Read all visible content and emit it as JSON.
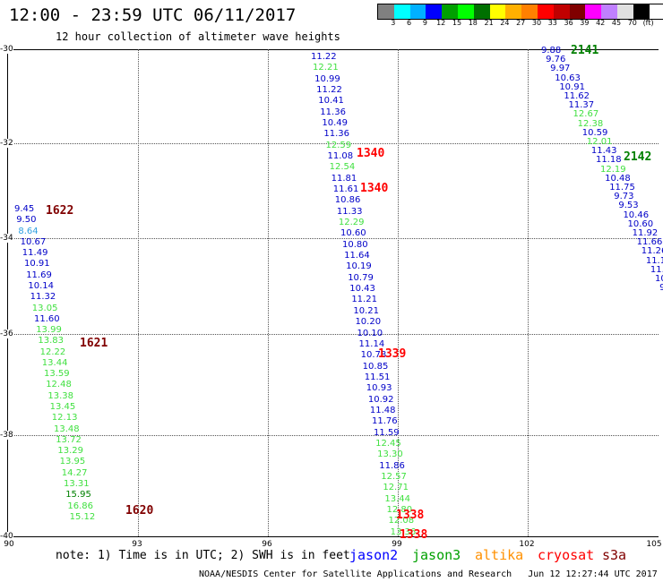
{
  "title": "12:00 - 23:59 UTC 06/11/2017",
  "subtitle": "12 hour collection of altimeter wave heights",
  "scale": {
    "labels": [
      "3",
      "6",
      "9",
      "12",
      "15",
      "18",
      "21",
      "24",
      "27",
      "30",
      "33",
      "36",
      "39",
      "42",
      "45",
      "70",
      "(ft)"
    ],
    "colors": [
      "#808080",
      "#00ffff",
      "#00b0ff",
      "#0000ff",
      "#00a000",
      "#00ff00",
      "#007000",
      "#ffff00",
      "#ffb000",
      "#ff8000",
      "#ff0000",
      "#c00000",
      "#800000",
      "#ff00ff",
      "#c080ff",
      "#e0e0e0",
      "#000000",
      "#ffffff"
    ]
  },
  "axes": {
    "y_labels": [
      "-30",
      "-32",
      "-34",
      "-36",
      "-38",
      "-40"
    ],
    "x_labels": [
      "90",
      "93",
      "96",
      "99",
      "102",
      "105"
    ]
  },
  "colors": {
    "blue": "#0000c8",
    "lightgreen": "#40e040",
    "darkgreen": "#008000",
    "cyan": "#30a0e0",
    "darkred": "#800000",
    "red": "#ff0000"
  },
  "tracks": [
    {
      "name": "jason2-track-a",
      "values": [
        {
          "t": "9.45",
          "c": "blue"
        },
        {
          "t": "9.50",
          "c": "blue"
        },
        {
          "t": "8.64",
          "c": "cyan"
        },
        {
          "t": "10.67",
          "c": "blue"
        },
        {
          "t": "11.49",
          "c": "blue"
        },
        {
          "t": "10.91",
          "c": "blue"
        },
        {
          "t": "11.69",
          "c": "blue"
        },
        {
          "t": "10.14",
          "c": "blue"
        },
        {
          "t": "11.32",
          "c": "blue"
        },
        {
          "t": "13.05",
          "c": "lightgreen"
        },
        {
          "t": "11.60",
          "c": "blue"
        },
        {
          "t": "13.99",
          "c": "lightgreen"
        },
        {
          "t": "13.83",
          "c": "lightgreen"
        },
        {
          "t": "12.22",
          "c": "lightgreen"
        },
        {
          "t": "13.44",
          "c": "lightgreen"
        },
        {
          "t": "13.59",
          "c": "lightgreen"
        },
        {
          "t": "12.48",
          "c": "lightgreen"
        },
        {
          "t": "13.38",
          "c": "lightgreen"
        },
        {
          "t": "13.45",
          "c": "lightgreen"
        },
        {
          "t": "12.13",
          "c": "lightgreen"
        },
        {
          "t": "13.48",
          "c": "lightgreen"
        },
        {
          "t": "13.72",
          "c": "lightgreen"
        },
        {
          "t": "13.29",
          "c": "lightgreen"
        },
        {
          "t": "13.95",
          "c": "lightgreen"
        },
        {
          "t": "14.27",
          "c": "lightgreen"
        },
        {
          "t": "13.31",
          "c": "lightgreen"
        },
        {
          "t": "15.95",
          "c": "darkgreen"
        },
        {
          "t": "16.86",
          "c": "lightgreen"
        },
        {
          "t": "15.12",
          "c": "lightgreen"
        }
      ]
    },
    {
      "name": "jason2-track-b",
      "values": [
        {
          "t": "11.22",
          "c": "blue"
        },
        {
          "t": "12.21",
          "c": "lightgreen"
        },
        {
          "t": "10.99",
          "c": "blue"
        },
        {
          "t": "11.22",
          "c": "blue"
        },
        {
          "t": "10.41",
          "c": "blue"
        },
        {
          "t": "11.36",
          "c": "blue"
        },
        {
          "t": "10.49",
          "c": "blue"
        },
        {
          "t": "11.36",
          "c": "blue"
        },
        {
          "t": "12.59",
          "c": "lightgreen"
        },
        {
          "t": "11.08",
          "c": "blue"
        },
        {
          "t": "12.54",
          "c": "lightgreen"
        },
        {
          "t": "11.81",
          "c": "blue"
        },
        {
          "t": "11.61",
          "c": "blue"
        },
        {
          "t": "10.86",
          "c": "blue"
        },
        {
          "t": "11.33",
          "c": "blue"
        },
        {
          "t": "12.29",
          "c": "lightgreen"
        },
        {
          "t": "10.60",
          "c": "blue"
        },
        {
          "t": "10.80",
          "c": "blue"
        },
        {
          "t": "11.64",
          "c": "blue"
        },
        {
          "t": "10.19",
          "c": "blue"
        },
        {
          "t": "10.79",
          "c": "blue"
        },
        {
          "t": "10.43",
          "c": "blue"
        },
        {
          "t": "11.21",
          "c": "blue"
        },
        {
          "t": "10.21",
          "c": "blue"
        },
        {
          "t": "10.20",
          "c": "blue"
        },
        {
          "t": "10.10",
          "c": "blue"
        },
        {
          "t": "11.14",
          "c": "blue"
        },
        {
          "t": "10.78",
          "c": "blue"
        },
        {
          "t": "10.85",
          "c": "blue"
        },
        {
          "t": "11.51",
          "c": "blue"
        },
        {
          "t": "10.93",
          "c": "blue"
        },
        {
          "t": "10.92",
          "c": "blue"
        },
        {
          "t": "11.48",
          "c": "blue"
        },
        {
          "t": "11.76",
          "c": "blue"
        },
        {
          "t": "11.59",
          "c": "blue"
        },
        {
          "t": "12.45",
          "c": "lightgreen"
        },
        {
          "t": "13.30",
          "c": "lightgreen"
        },
        {
          "t": "11.86",
          "c": "blue"
        },
        {
          "t": "12.57",
          "c": "lightgreen"
        },
        {
          "t": "12.71",
          "c": "lightgreen"
        },
        {
          "t": "13.44",
          "c": "lightgreen"
        },
        {
          "t": "12.80",
          "c": "lightgreen"
        },
        {
          "t": "12.08",
          "c": "lightgreen"
        },
        {
          "t": "13.36",
          "c": "lightgreen"
        }
      ]
    },
    {
      "name": "jason2-track-c",
      "values": [
        {
          "t": "9.88",
          "c": "blue"
        },
        {
          "t": "9.76",
          "c": "blue"
        },
        {
          "t": "9.97",
          "c": "blue"
        },
        {
          "t": "10.63",
          "c": "blue"
        },
        {
          "t": "10.91",
          "c": "blue"
        },
        {
          "t": "11.62",
          "c": "blue"
        },
        {
          "t": "11.37",
          "c": "blue"
        },
        {
          "t": "12.67",
          "c": "lightgreen"
        },
        {
          "t": "12.38",
          "c": "lightgreen"
        },
        {
          "t": "10.59",
          "c": "blue"
        },
        {
          "t": "12.01",
          "c": "lightgreen"
        },
        {
          "t": "11.43",
          "c": "blue"
        },
        {
          "t": "11.18",
          "c": "blue"
        },
        {
          "t": "12.19",
          "c": "lightgreen"
        },
        {
          "t": "10.48",
          "c": "blue"
        },
        {
          "t": "11.75",
          "c": "blue"
        },
        {
          "t": "9.73",
          "c": "blue"
        },
        {
          "t": "9.53",
          "c": "blue"
        },
        {
          "t": "10.46",
          "c": "blue"
        },
        {
          "t": "10.60",
          "c": "blue"
        },
        {
          "t": "11.92",
          "c": "blue"
        },
        {
          "t": "11.66",
          "c": "blue"
        },
        {
          "t": "11.26",
          "c": "blue"
        },
        {
          "t": "11.1",
          "c": "blue"
        },
        {
          "t": "11.",
          "c": "blue"
        },
        {
          "t": "10",
          "c": "blue"
        },
        {
          "t": "9",
          "c": "blue"
        }
      ]
    }
  ],
  "time_tags": [
    {
      "t": "1622",
      "c": "darkred"
    },
    {
      "t": "1621",
      "c": "darkred"
    },
    {
      "t": "1620",
      "c": "darkred"
    },
    {
      "t": "1340",
      "c": "red"
    },
    {
      "t": "1340",
      "c": "red"
    },
    {
      "t": "1339",
      "c": "red"
    },
    {
      "t": "1338",
      "c": "red"
    },
    {
      "t": "1338",
      "c": "red"
    },
    {
      "t": "2141",
      "c": "darkgreen"
    },
    {
      "t": "2142",
      "c": "darkgreen"
    }
  ],
  "footer": {
    "note": "note: 1) Time is in UTC; 2) SWH is in feet",
    "satellites": [
      {
        "label": "jason2",
        "color": "#0000ff"
      },
      {
        "label": "jason3",
        "color": "#00a000"
      },
      {
        "label": "altika",
        "color": "#ff9000"
      },
      {
        "label": "cryosat",
        "color": "#ff0000"
      },
      {
        "label": "s3a",
        "color": "#800000"
      }
    ],
    "credit": "NOAA/NESDIS Center for Satellite Applications and Research   Jun 12 12:27:44 UTC 2017"
  }
}
